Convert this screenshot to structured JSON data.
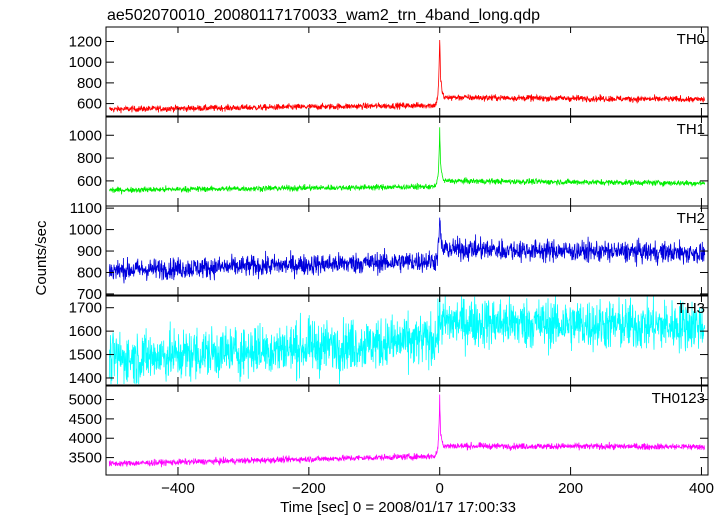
{
  "chart_data": [
    {
      "type": "line",
      "title": "ae502070010_20080117170033_wam2_trn_4band_long.qdp",
      "xlabel": "Time [sec] 0 = 2008/01/17 17:00:33",
      "ylabel": "Counts/sec",
      "xlim": [
        -510,
        410
      ],
      "xticks": [
        "−400",
        "−200",
        "0",
        "200",
        "400"
      ],
      "grid": false,
      "panels": [
        {
          "name": "TH0",
          "color": "#ff0000",
          "ylim": [
            480,
            1340
          ],
          "yticks": [
            600,
            800,
            1000,
            1200
          ],
          "baseline_start": 545,
          "baseline_end": 615,
          "noise": 30,
          "peak": 1320,
          "post_peak": 660
        },
        {
          "name": "TH1",
          "color": "#00ee00",
          "ylim": [
            380,
            1160
          ],
          "yticks": [
            600,
            800,
            1000
          ],
          "baseline_start": 520,
          "baseline_end": 575,
          "noise": 25,
          "peak": 1120,
          "post_peak": 600
        },
        {
          "name": "TH2",
          "color": "#0000dd",
          "ylim": [
            695,
            1110
          ],
          "yticks": [
            700,
            800,
            900,
            1000,
            1100
          ],
          "baseline_start": 810,
          "baseline_end": 890,
          "noise": 50,
          "peak": 1100,
          "post_peak": 910
        },
        {
          "name": "TH3",
          "color": "#00ffff",
          "ylim": [
            1370,
            1750
          ],
          "yticks": [
            1400,
            1500,
            1600,
            1700
          ],
          "baseline_start": 1480,
          "baseline_end": 1630,
          "noise": 110,
          "peak": 1700,
          "post_peak": 1640
        },
        {
          "name": "TH0123",
          "color": "#ff00ff",
          "ylim": [
            3050,
            5350
          ],
          "yticks": [
            3500,
            4000,
            4500,
            5000
          ],
          "baseline_start": 3340,
          "baseline_end": 3700,
          "noise": 80,
          "peak": 5250,
          "post_peak": 3800
        }
      ]
    }
  ]
}
